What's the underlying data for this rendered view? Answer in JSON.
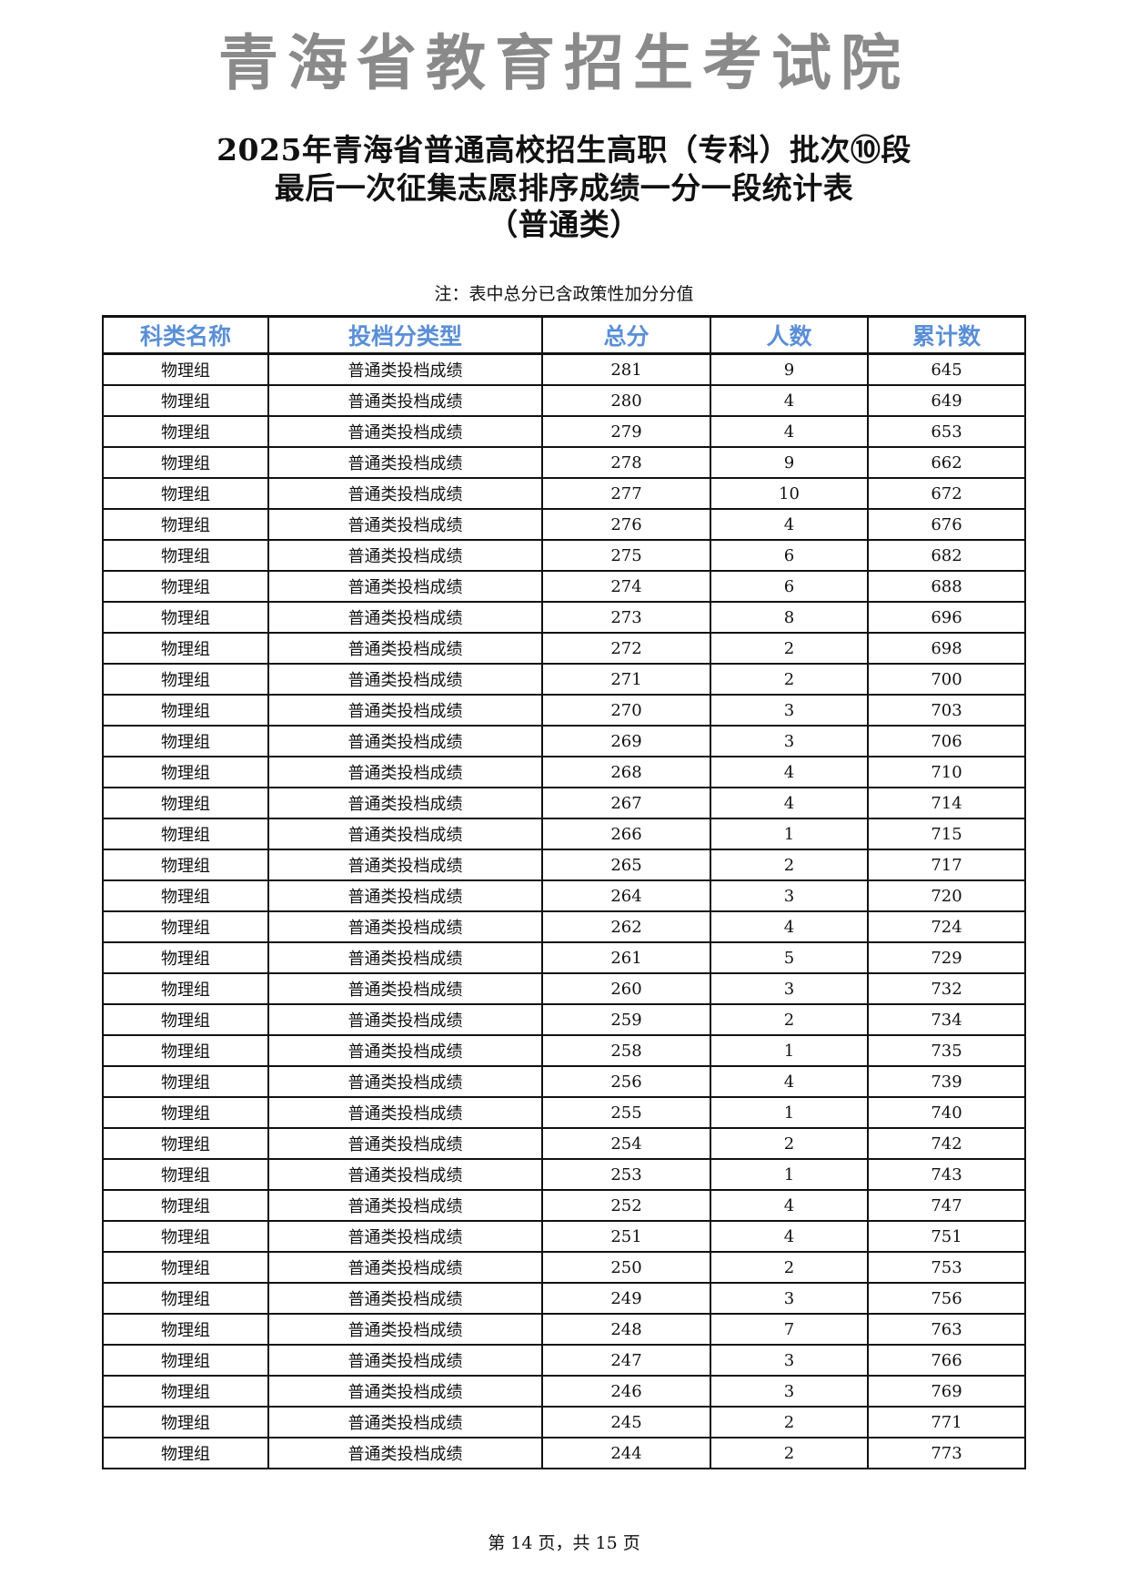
{
  "title_lines": [
    "2025年青海省普通高校招生高职（专科）批次⑩段",
    "最后一次征集志愿排序成绩一分一段统计表",
    "（普通类）"
  ],
  "note": "注：表中总分已含政策性加分分值",
  "table": {
    "headers": [
      "科类名称",
      "投档分类型",
      "总分",
      "人数",
      "累计数"
    ],
    "header_color": "#5b8fd6",
    "rows": [
      [
        "物理组",
        "普通类投档成绩",
        "281",
        "9",
        "645"
      ],
      [
        "物理组",
        "普通类投档成绩",
        "280",
        "4",
        "649"
      ],
      [
        "物理组",
        "普通类投档成绩",
        "279",
        "4",
        "653"
      ],
      [
        "物理组",
        "普通类投档成绩",
        "278",
        "9",
        "662"
      ],
      [
        "物理组",
        "普通类投档成绩",
        "277",
        "10",
        "672"
      ],
      [
        "物理组",
        "普通类投档成绩",
        "276",
        "4",
        "676"
      ],
      [
        "物理组",
        "普通类投档成绩",
        "275",
        "6",
        "682"
      ],
      [
        "物理组",
        "普通类投档成绩",
        "274",
        "6",
        "688"
      ],
      [
        "物理组",
        "普通类投档成绩",
        "273",
        "8",
        "696"
      ],
      [
        "物理组",
        "普通类投档成绩",
        "272",
        "2",
        "698"
      ],
      [
        "物理组",
        "普通类投档成绩",
        "271",
        "2",
        "700"
      ],
      [
        "物理组",
        "普通类投档成绩",
        "270",
        "3",
        "703"
      ],
      [
        "物理组",
        "普通类投档成绩",
        "269",
        "3",
        "706"
      ],
      [
        "物理组",
        "普通类投档成绩",
        "268",
        "4",
        "710"
      ],
      [
        "物理组",
        "普通类投档成绩",
        "267",
        "4",
        "714"
      ],
      [
        "物理组",
        "普通类投档成绩",
        "266",
        "1",
        "715"
      ],
      [
        "物理组",
        "普通类投档成绩",
        "265",
        "2",
        "717"
      ],
      [
        "物理组",
        "普通类投档成绩",
        "264",
        "3",
        "720"
      ],
      [
        "物理组",
        "普通类投档成绩",
        "262",
        "4",
        "724"
      ],
      [
        "物理组",
        "普通类投档成绩",
        "261",
        "5",
        "729"
      ],
      [
        "物理组",
        "普通类投档成绩",
        "260",
        "3",
        "732"
      ],
      [
        "物理组",
        "普通类投档成绩",
        "259",
        "2",
        "734"
      ],
      [
        "物理组",
        "普通类投档成绩",
        "258",
        "1",
        "735"
      ],
      [
        "物理组",
        "普通类投档成绩",
        "256",
        "4",
        "739"
      ],
      [
        "物理组",
        "普通类投档成绩",
        "255",
        "1",
        "740"
      ],
      [
        "物理组",
        "普通类投档成绩",
        "254",
        "2",
        "742"
      ],
      [
        "物理组",
        "普通类投档成绩",
        "253",
        "1",
        "743"
      ],
      [
        "物理组",
        "普通类投档成绩",
        "252",
        "4",
        "747"
      ],
      [
        "物理组",
        "普通类投档成绩",
        "251",
        "4",
        "751"
      ],
      [
        "物理组",
        "普通类投档成绩",
        "250",
        "2",
        "753"
      ],
      [
        "物理组",
        "普通类投档成绩",
        "249",
        "3",
        "756"
      ],
      [
        "物理组",
        "普通类投档成绩",
        "248",
        "7",
        "763"
      ],
      [
        "物理组",
        "普通类投档成绩",
        "247",
        "3",
        "766"
      ],
      [
        "物理组",
        "普通类投档成绩",
        "246",
        "3",
        "769"
      ],
      [
        "物理组",
        "普通类投档成绩",
        "245",
        "2",
        "771"
      ],
      [
        "物理组",
        "普通类投档成绩",
        "244",
        "2",
        "773"
      ]
    ]
  },
  "watermark": "青海省教育招生考试院",
  "footer": "第 14 页，共 15 页"
}
